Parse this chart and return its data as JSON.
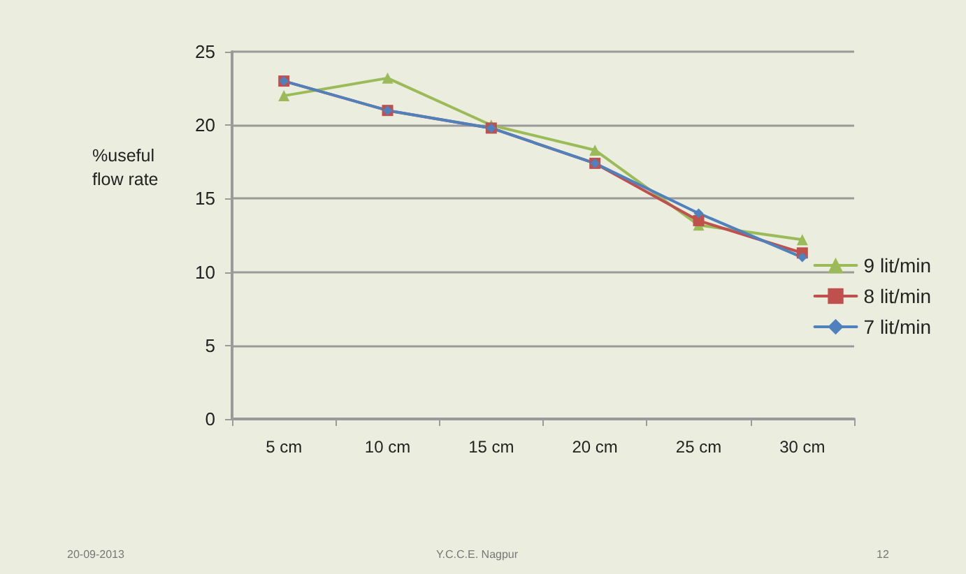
{
  "chart_data": {
    "type": "line",
    "ylabel": "%useful flow rate",
    "categories": [
      "5 cm",
      "10 cm",
      "15 cm",
      "20 cm",
      "25 cm",
      "30 cm"
    ],
    "series": [
      {
        "name": "9 lit/min",
        "color": "#9bbb59",
        "marker": "triangle",
        "values": [
          22,
          23.2,
          20,
          18.3,
          13.2,
          12.2
        ]
      },
      {
        "name": "8 lit/min",
        "color": "#c0504d",
        "marker": "square",
        "values": [
          23,
          21,
          19.8,
          17.4,
          13.5,
          11.3
        ]
      },
      {
        "name": "7 lit/min",
        "color": "#4f81bd",
        "marker": "diamond",
        "values": [
          23,
          21,
          19.8,
          17.4,
          14,
          11
        ]
      }
    ],
    "ylim": [
      0,
      25
    ],
    "yticks": [
      0,
      5,
      10,
      15,
      20,
      25
    ],
    "grid": "y",
    "legend": "right",
    "annotations": [
      "20-09-2013",
      "Y.C.C.E. Nagpur",
      "12"
    ]
  }
}
